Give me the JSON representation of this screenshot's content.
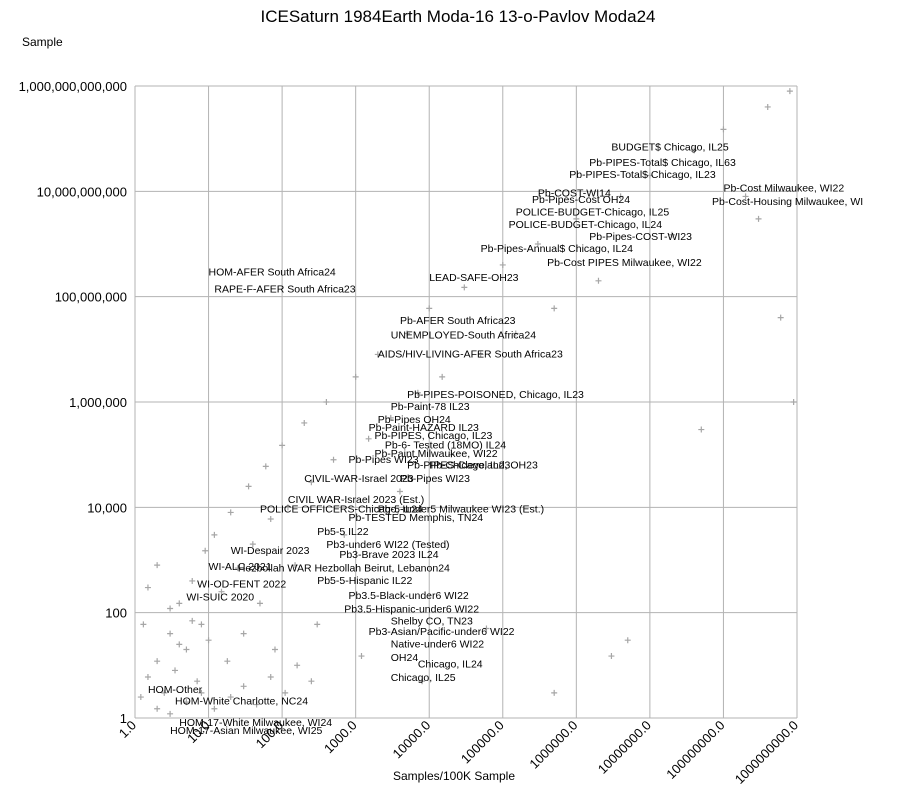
{
  "chart_data": {
    "type": "scatter",
    "title": "ICESaturn 1984Earth Moda-16 13-o-Pavlov Moda24",
    "ylabel": "Sample",
    "xlabel": "Samples/100K Sample",
    "x_scale": "log",
    "y_scale": "log",
    "xlim": [
      1,
      1000000000
    ],
    "ylim": [
      1,
      1000000000000
    ],
    "grid": true,
    "x_tick_labels": [
      "1.0",
      "10.0",
      "100.0",
      "1000.0",
      "10000.0",
      "100000.0",
      "1000000.0",
      "10000000.0",
      "100000000.0",
      "1000000000.0"
    ],
    "y_tick_labels": [
      "1",
      "100",
      "10,000",
      "1,000,000",
      "100,000,000",
      "10,000,000,000",
      "1,000,000,000,000"
    ],
    "marker": "+",
    "marker_color": "#a6a6a6",
    "series": [
      {
        "name": "Sample",
        "points": [
          {
            "x": 1.2,
            "y": 2.5
          },
          {
            "x": 1.5,
            "y": 6
          },
          {
            "x": 2,
            "y": 12
          },
          {
            "x": 2.5,
            "y": 3
          },
          {
            "x": 3,
            "y": 40
          },
          {
            "x": 3.5,
            "y": 8
          },
          {
            "x": 4,
            "y": 150
          },
          {
            "x": 5,
            "y": 20
          },
          {
            "x": 6,
            "y": 400
          },
          {
            "x": 7,
            "y": 5
          },
          {
            "x": 8,
            "y": 60
          },
          {
            "x": 9,
            "y": 1500
          },
          {
            "x": 10,
            "y": 30
          },
          {
            "x": 12,
            "y": 3000
          },
          {
            "x": 15,
            "y": 250
          },
          {
            "x": 18,
            "y": 12
          },
          {
            "x": 20,
            "y": 8000
          },
          {
            "x": 25,
            "y": 700
          },
          {
            "x": 30,
            "y": 40
          },
          {
            "x": 35,
            "y": 25000
          },
          {
            "x": 40,
            "y": 2000
          },
          {
            "x": 50,
            "y": 150
          },
          {
            "x": 60,
            "y": 60000
          },
          {
            "x": 70,
            "y": 6000
          },
          {
            "x": 80,
            "y": 20
          },
          {
            "x": 100,
            "y": 150000
          },
          {
            "x": 120,
            "y": 10000
          },
          {
            "x": 150,
            "y": 800
          },
          {
            "x": 200,
            "y": 400000
          },
          {
            "x": 250,
            "y": 30000
          },
          {
            "x": 300,
            "y": 60
          },
          {
            "x": 400,
            "y": 1000000
          },
          {
            "x": 500,
            "y": 80000
          },
          {
            "x": 700,
            "y": 3000
          },
          {
            "x": 1000,
            "y": 3000000
          },
          {
            "x": 1500,
            "y": 200000
          },
          {
            "x": 2000,
            "y": 8000000
          },
          {
            "x": 3000,
            "y": 500000
          },
          {
            "x": 4000,
            "y": 20000
          },
          {
            "x": 5000,
            "y": 20000000
          },
          {
            "x": 7000,
            "y": 1500000
          },
          {
            "x": 10000,
            "y": 60000000
          },
          {
            "x": 15000,
            "y": 3000000
          },
          {
            "x": 20000,
            "y": 100000
          },
          {
            "x": 30000,
            "y": 150000000
          },
          {
            "x": 50000,
            "y": 8000000
          },
          {
            "x": 100000,
            "y": 400000000
          },
          {
            "x": 150000,
            "y": 20000000
          },
          {
            "x": 300000,
            "y": 1000000000
          },
          {
            "x": 500000,
            "y": 60000000
          },
          {
            "x": 1000000,
            "y": 3000000000
          },
          {
            "x": 2000000,
            "y": 200000000
          },
          {
            "x": 4000000,
            "y": 8000000000
          },
          {
            "x": 10000000,
            "y": 20000000000
          },
          {
            "x": 20000000,
            "y": 1500000000
          },
          {
            "x": 40000000,
            "y": 60000000000
          },
          {
            "x": 100000000,
            "y": 150000000000
          },
          {
            "x": 200000000,
            "y": 8000000000
          },
          {
            "x": 400000000,
            "y": 400000000000
          },
          {
            "x": 800000000,
            "y": 800000000000
          },
          {
            "x": 900000000,
            "y": 1000000
          },
          {
            "x": 600000000,
            "y": 40000000
          },
          {
            "x": 300000000,
            "y": 3000000000
          },
          {
            "x": 50000000,
            "y": 300000
          },
          {
            "x": 5000000,
            "y": 30
          },
          {
            "x": 500000,
            "y": 3
          },
          {
            "x": 3000000,
            "y": 15
          },
          {
            "x": 60000,
            "y": 50
          },
          {
            "x": 8000,
            "y": 5
          },
          {
            "x": 1200,
            "y": 15
          },
          {
            "x": 2,
            "y": 1.5
          },
          {
            "x": 3,
            "y": 1.2
          },
          {
            "x": 5,
            "y": 2
          },
          {
            "x": 8,
            "y": 3
          },
          {
            "x": 12,
            "y": 1.5
          },
          {
            "x": 20,
            "y": 2.5
          },
          {
            "x": 30,
            "y": 4
          },
          {
            "x": 45,
            "y": 1.8
          },
          {
            "x": 70,
            "y": 6
          },
          {
            "x": 110,
            "y": 3
          },
          {
            "x": 160,
            "y": 10
          },
          {
            "x": 250,
            "y": 5
          },
          {
            "x": 1.5,
            "y": 300
          },
          {
            "x": 2,
            "y": 800
          },
          {
            "x": 1.3,
            "y": 60
          },
          {
            "x": 3,
            "y": 120
          },
          {
            "x": 4,
            "y": 25
          },
          {
            "x": 6,
            "y": 70
          }
        ]
      }
    ],
    "annotations": [
      {
        "text": "BUDGET$ Chicago, IL25",
        "x": 3000000,
        "y": 60000000000
      },
      {
        "text": "Pb-PIPES-Total$ Chicago, IL63",
        "x": 1500000,
        "y": 30000000000
      },
      {
        "text": "Pb-PIPES-Total$ Chicago, IL23",
        "x": 800000,
        "y": 18000000000
      },
      {
        "text": "Pb-Cost Milwaukee, WI22",
        "x": 100000000,
        "y": 10000000000
      },
      {
        "text": "Pb-COST-WI14",
        "x": 300000,
        "y": 8000000000
      },
      {
        "text": "Pb-Pipes-Cost OH24",
        "x": 250000,
        "y": 6000000000
      },
      {
        "text": "Pb-Cost-Housing Milwaukee, WI",
        "x": 70000000,
        "y": 5500000000
      },
      {
        "text": "POLICE-BUDGET-Chicago, IL25",
        "x": 150000,
        "y": 3500000000
      },
      {
        "text": "POLICE-BUDGET-Chicago, IL24",
        "x": 120000,
        "y": 2000000000
      },
      {
        "text": "Pb-Pipes-COST-WI23",
        "x": 1500000,
        "y": 1200000000
      },
      {
        "text": "Pb-Pipes-Annual$ Chicago, IL24",
        "x": 50000,
        "y": 700000000
      },
      {
        "text": "Pb-Cost PIPES Milwaukee, WI22",
        "x": 400000,
        "y": 380000000
      },
      {
        "text": "LEAD-SAFE-OH23",
        "x": 10000,
        "y": 200000000
      },
      {
        "text": "HOM-AFER South Africa24",
        "x": 10,
        "y": 250000000
      },
      {
        "text": "RAPE-F-AFER South Africa23",
        "x": 12,
        "y": 120000000
      },
      {
        "text": "Pb-AFER South Africa23",
        "x": 4000,
        "y": 30000000
      },
      {
        "text": "UNEMPLOYED-South Africa24",
        "x": 3000,
        "y": 16000000
      },
      {
        "text": "AIDS/HIV-LIVING-AFER South Africa23",
        "x": 2000,
        "y": 7000000
      },
      {
        "text": "Pb-PIPES-POISONED, Chicago, IL23",
        "x": 5000,
        "y": 1200000
      },
      {
        "text": "Pb-Paint-78 IL23",
        "x": 3000,
        "y": 700000
      },
      {
        "text": "Pb-Pipes OH24",
        "x": 2000,
        "y": 400000
      },
      {
        "text": "Pb-Paint-HAZARD IL23",
        "x": 1500,
        "y": 280000
      },
      {
        "text": "Pb-PIPES, Chicago, IL23",
        "x": 1800,
        "y": 200000
      },
      {
        "text": "Pb-6- Tested (18MO) IL24",
        "x": 2500,
        "y": 130000
      },
      {
        "text": "Pb-Paint Milwaukee, WI22",
        "x": 1800,
        "y": 90000
      },
      {
        "text": "Pb-Pipes WI23",
        "x": 800,
        "y": 70000
      },
      {
        "text": "Pb-PIPES-Cleveland, OH23",
        "x": 5000,
        "y": 55000
      },
      {
        "text": "Pb-Chicago, IL23",
        "x": 10000,
        "y": 55000
      },
      {
        "text": "CIVIL-WAR-Israel 2023",
        "x": 200,
        "y": 30000
      },
      {
        "text": "Pb-Pipes WI23",
        "x": 4000,
        "y": 30000
      },
      {
        "text": "CIVIL WAR-Israel 2023 (Est.)",
        "x": 120,
        "y": 12000
      },
      {
        "text": "POLICE OFFICERS-Chicago, IL24",
        "x": 50,
        "y": 8000
      },
      {
        "text": "Pb-5-under5 Milwaukee WI23 (Est.)",
        "x": 2000,
        "y": 8000
      },
      {
        "text": "Pb-TESTED Memphis, TN24",
        "x": 800,
        "y": 5500
      },
      {
        "text": "Pb5-5 IL22",
        "x": 300,
        "y": 3000
      },
      {
        "text": "Pb3-under6 WI22 (Tested)",
        "x": 400,
        "y": 1700
      },
      {
        "text": "WI-Despair 2023",
        "x": 20,
        "y": 1300
      },
      {
        "text": "Pb3-Brave 2023 IL24",
        "x": 600,
        "y": 1100
      },
      {
        "text": "WI-ALC 2021",
        "x": 10,
        "y": 650
      },
      {
        "text": "Hezbollah WAR Hezbollah Beirut, Lebanon24",
        "x": 25,
        "y": 600
      },
      {
        "text": "Pb5-5-Hispanic IL22",
        "x": 300,
        "y": 350
      },
      {
        "text": "WI-OD-FENT 2022",
        "x": 7,
        "y": 300
      },
      {
        "text": "Pb3.5-Black-under6 WI22",
        "x": 800,
        "y": 180
      },
      {
        "text": "WI-SUIC 2020",
        "x": 5,
        "y": 170
      },
      {
        "text": "Pb3.5-Hispanic-under6 WI22",
        "x": 700,
        "y": 100
      },
      {
        "text": "Shelby CO, TN23",
        "x": 3000,
        "y": 60
      },
      {
        "text": "Pb3-Asian/Pacific-under6 WI22",
        "x": 1500,
        "y": 38
      },
      {
        "text": "Native-under6 WI22",
        "x": 3000,
        "y": 22
      },
      {
        "text": "OH24",
        "x": 3000,
        "y": 12
      },
      {
        "text": "Chicago, IL24",
        "x": 7000,
        "y": 9
      },
      {
        "text": "Chicago, IL25",
        "x": 3000,
        "y": 5
      },
      {
        "text": "HOM-Other",
        "x": 1.5,
        "y": 3
      },
      {
        "text": "HOM-White Charlotte, NC24",
        "x": 3.5,
        "y": 1.8
      },
      {
        "text": "HOM-17-White Milwaukee, WI24",
        "x": 4,
        "y": 0.7
      },
      {
        "text": "HOM-17-Asian Milwaukee, WI25",
        "x": 3,
        "y": 0.5
      }
    ]
  }
}
